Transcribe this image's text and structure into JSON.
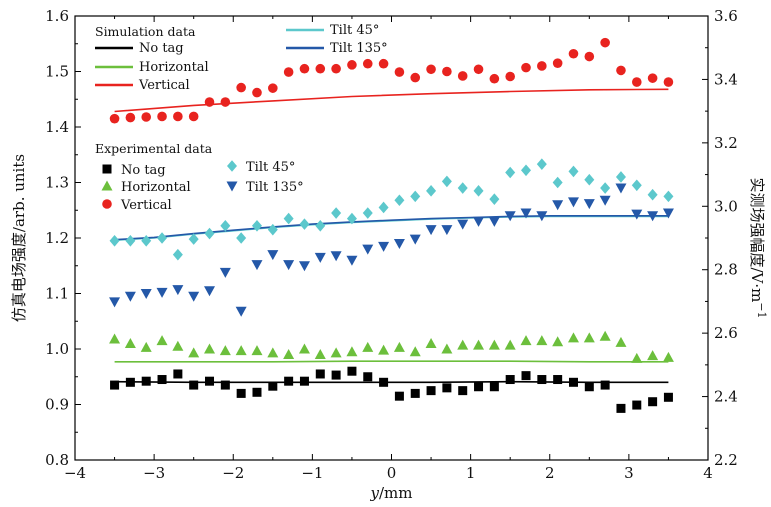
{
  "chart_data": {
    "type": "scatter",
    "title": "",
    "xlabel_italic": "y",
    "xlabel_unit": "/mm",
    "ylabel_left": "仿真电场强度/arb. units",
    "ylabel_right": "实测场强幅度/V·m",
    "ylabel_right_exp": "−1",
    "xlim": [
      -4,
      4
    ],
    "ylim_left": [
      0.8,
      1.6
    ],
    "ylim_right": [
      2.2,
      3.6
    ],
    "xticks": [
      "−4",
      "−3",
      "−2",
      "−1",
      "0",
      "1",
      "2",
      "3",
      "4"
    ],
    "yticks_left": [
      "0.8",
      "0.9",
      "1.0",
      "1.1",
      "1.2",
      "1.3",
      "1.4",
      "1.5",
      "1.6"
    ],
    "yticks_right": [
      "2.2",
      "2.4",
      "2.6",
      "2.8",
      "3.0",
      "3.2",
      "3.4",
      "3.6"
    ],
    "grid": false,
    "legend_simulation": {
      "title": "Simulation data",
      "entries": [
        "No tag",
        "Horizontal",
        "Vertical",
        "Tilt 45°",
        "Tilt 135°"
      ]
    },
    "legend_experimental": {
      "title": "Experimental data",
      "entries": [
        "No tag",
        "Horizontal",
        "Vertical",
        "Tilt 45°",
        "Tilt 135°"
      ]
    },
    "colors": {
      "no_tag": "#000000",
      "horizontal": "#6cbf3c",
      "vertical": "#e8231f",
      "tilt45": "#5cc8cc",
      "tilt135": "#2458a8"
    },
    "simulation_series": [
      {
        "name": "No tag",
        "color": "#000000",
        "x": [
          -3.5,
          -2.5,
          -1.5,
          -0.5,
          0.5,
          1.5,
          2.5,
          3.5
        ],
        "y": [
          0.941,
          0.94,
          0.94,
          0.94,
          0.94,
          0.941,
          0.94,
          0.94
        ]
      },
      {
        "name": "Horizontal",
        "color": "#6cbf3c",
        "x": [
          -3.5,
          -2.5,
          -1.5,
          -0.5,
          0.5,
          1.5,
          2.5,
          3.5
        ],
        "y": [
          0.977,
          0.977,
          0.977,
          0.978,
          0.978,
          0.978,
          0.977,
          0.977
        ]
      },
      {
        "name": "Vertical",
        "color": "#e8231f",
        "x": [
          -3.5,
          -2.5,
          -1.5,
          -0.5,
          0.5,
          1.5,
          2.5,
          3.5
        ],
        "y": [
          1.428,
          1.439,
          1.447,
          1.455,
          1.46,
          1.464,
          1.467,
          1.468
        ]
      },
      {
        "name": "Tilt 45°",
        "color": "#5cc8cc",
        "x": [
          -3.5,
          -3.0,
          -2.5,
          -2.0,
          -1.5,
          -1.0,
          -0.5,
          0.0,
          0.5,
          1.0,
          1.5,
          2.0,
          2.5,
          3.0,
          3.5
        ],
        "y": [
          1.196,
          1.2,
          1.207,
          1.213,
          1.219,
          1.224,
          1.228,
          1.231,
          1.234,
          1.236,
          1.238,
          1.239,
          1.239,
          1.239,
          1.239
        ]
      },
      {
        "name": "Tilt 135°",
        "color": "#2458a8",
        "x": [
          -3.5,
          -3.0,
          -2.5,
          -2.0,
          -1.5,
          -1.0,
          -0.5,
          0.0,
          0.5,
          1.0,
          1.5,
          2.0,
          2.5,
          3.0,
          3.5
        ],
        "y": [
          1.197,
          1.201,
          1.208,
          1.214,
          1.22,
          1.225,
          1.229,
          1.232,
          1.235,
          1.237,
          1.239,
          1.24,
          1.24,
          1.24,
          1.24
        ]
      }
    ],
    "experimental_series": [
      {
        "name": "No tag",
        "marker": "square",
        "color": "#000000",
        "x": [
          -3.5,
          -3.3,
          -3.1,
          -2.9,
          -2.7,
          -2.5,
          -2.3,
          -2.1,
          -1.9,
          -1.7,
          -1.5,
          -1.3,
          -1.1,
          -0.9,
          -0.7,
          -0.5,
          -0.3,
          -0.1,
          0.1,
          0.3,
          0.5,
          0.7,
          0.9,
          1.1,
          1.3,
          1.5,
          1.7,
          1.9,
          2.1,
          2.3,
          2.5,
          2.7,
          2.9,
          3.1,
          3.3,
          3.5
        ],
        "y": [
          0.935,
          0.94,
          0.942,
          0.945,
          0.955,
          0.935,
          0.942,
          0.935,
          0.92,
          0.922,
          0.933,
          0.942,
          0.942,
          0.955,
          0.953,
          0.96,
          0.95,
          0.94,
          0.915,
          0.92,
          0.925,
          0.93,
          0.925,
          0.932,
          0.932,
          0.945,
          0.952,
          0.945,
          0.945,
          0.94,
          0.932,
          0.935,
          0.893,
          0.899,
          0.905,
          0.913
        ]
      },
      {
        "name": "Horizontal",
        "marker": "triangle-up",
        "color": "#6cbf3c",
        "x": [
          -3.5,
          -3.3,
          -3.1,
          -2.9,
          -2.7,
          -2.5,
          -2.3,
          -2.1,
          -1.9,
          -1.7,
          -1.5,
          -1.3,
          -1.1,
          -0.9,
          -0.7,
          -0.5,
          -0.3,
          -0.1,
          0.1,
          0.3,
          0.5,
          0.7,
          0.9,
          1.1,
          1.3,
          1.5,
          1.7,
          1.9,
          2.1,
          2.3,
          2.5,
          2.7,
          2.9,
          3.1,
          3.3,
          3.5
        ],
        "y": [
          1.018,
          1.01,
          1.003,
          1.015,
          1.005,
          0.993,
          1.0,
          0.997,
          0.997,
          0.997,
          0.993,
          0.99,
          1.0,
          0.99,
          0.993,
          0.995,
          1.003,
          0.998,
          1.003,
          0.995,
          1.01,
          1.0,
          1.007,
          1.007,
          1.007,
          1.007,
          1.015,
          1.015,
          1.013,
          1.02,
          1.02,
          1.023,
          1.012,
          0.983,
          0.988,
          0.985
        ]
      },
      {
        "name": "Vertical",
        "marker": "circle",
        "color": "#e8231f",
        "x": [
          -3.5,
          -3.3,
          -3.1,
          -2.9,
          -2.7,
          -2.5,
          -2.3,
          -2.1,
          -1.9,
          -1.7,
          -1.5,
          -1.3,
          -1.1,
          -0.9,
          -0.7,
          -0.5,
          -0.3,
          -0.1,
          0.1,
          0.3,
          0.5,
          0.7,
          0.9,
          1.1,
          1.3,
          1.5,
          1.7,
          1.9,
          2.1,
          2.3,
          2.5,
          2.7,
          2.9,
          3.1,
          3.3,
          3.5
        ],
        "y": [
          1.415,
          1.417,
          1.418,
          1.419,
          1.419,
          1.419,
          1.445,
          1.445,
          1.471,
          1.462,
          1.47,
          1.499,
          1.505,
          1.505,
          1.505,
          1.512,
          1.514,
          1.514,
          1.499,
          1.489,
          1.504,
          1.5,
          1.492,
          1.504,
          1.487,
          1.491,
          1.507,
          1.51,
          1.515,
          1.532,
          1.527,
          1.552,
          1.502,
          1.481,
          1.488,
          1.481
        ]
      },
      {
        "name": "Tilt 45°",
        "marker": "diamond",
        "color": "#5cc8cc",
        "x": [
          -3.5,
          -3.3,
          -3.1,
          -2.9,
          -2.7,
          -2.5,
          -2.3,
          -2.1,
          -1.9,
          -1.7,
          -1.5,
          -1.3,
          -1.1,
          -0.9,
          -0.7,
          -0.5,
          -0.3,
          -0.1,
          0.1,
          0.3,
          0.5,
          0.7,
          0.9,
          1.1,
          1.3,
          1.5,
          1.7,
          1.9,
          2.1,
          2.3,
          2.5,
          2.7,
          2.9,
          3.1,
          3.3,
          3.5
        ],
        "y": [
          1.195,
          1.195,
          1.195,
          1.2,
          1.17,
          1.198,
          1.208,
          1.222,
          1.2,
          1.222,
          1.215,
          1.235,
          1.225,
          1.222,
          1.245,
          1.235,
          1.245,
          1.255,
          1.268,
          1.275,
          1.285,
          1.302,
          1.29,
          1.285,
          1.27,
          1.318,
          1.322,
          1.333,
          1.3,
          1.32,
          1.305,
          1.29,
          1.31,
          1.295,
          1.278,
          1.275
        ]
      },
      {
        "name": "Tilt 135°",
        "marker": "triangle-down",
        "color": "#2458a8",
        "x": [
          -3.5,
          -3.3,
          -3.1,
          -2.9,
          -2.7,
          -2.5,
          -2.3,
          -2.1,
          -1.9,
          -1.7,
          -1.5,
          -1.3,
          -1.1,
          -0.9,
          -0.7,
          -0.5,
          -0.3,
          -0.1,
          0.1,
          0.3,
          0.5,
          0.7,
          0.9,
          1.1,
          1.3,
          1.5,
          1.7,
          1.9,
          2.1,
          2.3,
          2.5,
          2.7,
          2.9,
          3.1,
          3.3,
          3.5
        ],
        "y": [
          1.085,
          1.095,
          1.1,
          1.102,
          1.107,
          1.095,
          1.105,
          1.138,
          1.068,
          1.152,
          1.17,
          1.152,
          1.15,
          1.165,
          1.168,
          1.16,
          1.18,
          1.185,
          1.19,
          1.198,
          1.215,
          1.215,
          1.225,
          1.23,
          1.23,
          1.24,
          1.245,
          1.24,
          1.26,
          1.265,
          1.262,
          1.268,
          1.29,
          1.243,
          1.24,
          1.245
        ]
      }
    ]
  }
}
